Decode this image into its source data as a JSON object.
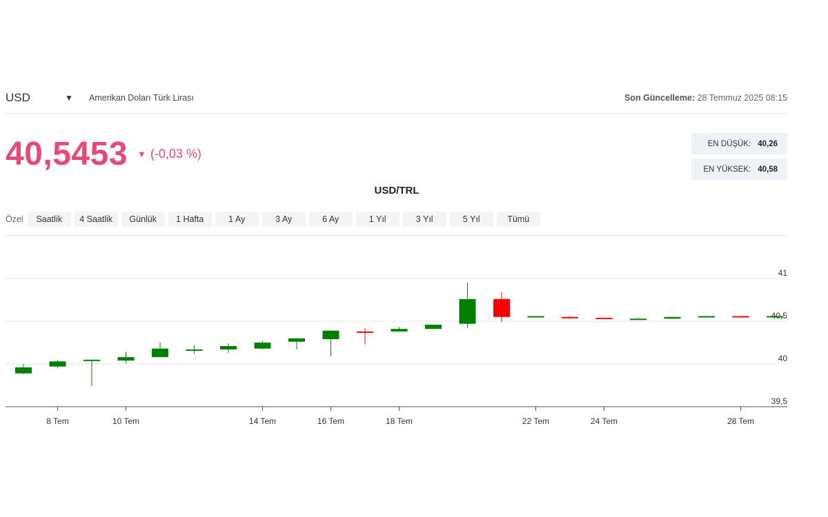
{
  "header": {
    "symbol": "USD",
    "caret_icon": "caret-down-icon",
    "description": "Amerikan Doları Türk Lirası",
    "updated_label": "Son Güncelleme:",
    "updated_value": "28 Temmuz 2025 08:15"
  },
  "quote": {
    "price": "40,5453",
    "change_icon": "caret-down-icon",
    "change": "(-0,03 %)"
  },
  "stats": {
    "low_label": "EN DÜŞÜK:",
    "low_value": "40,26",
    "high_label": "EN YÜKSEK:",
    "high_value": "40,58"
  },
  "range": {
    "label": "Özel",
    "buttons": [
      "Saatlik",
      "4 Saatlik",
      "Günlük",
      "1 Hafta",
      "1 Ay",
      "3 Ay",
      "6 Ay",
      "1 Yıl",
      "3 Yıl",
      "5 Yıl",
      "Tümü"
    ]
  },
  "chart_data": {
    "type": "candlestick",
    "title": "USD/TRL",
    "up_color": "#008000",
    "down_color": "#ff0000",
    "y_range": [
      39.5,
      41.0
    ],
    "y_ticks": [
      {
        "value": 41,
        "label": "41"
      },
      {
        "value": 40.5,
        "label": "40,5"
      },
      {
        "value": 40,
        "label": "40"
      },
      {
        "value": 39.5,
        "label": "39,5"
      }
    ],
    "x_ticks": [
      {
        "day": 8,
        "label": "8 Tem"
      },
      {
        "day": 10,
        "label": "10 Tem"
      },
      {
        "day": 14,
        "label": "14 Tem"
      },
      {
        "day": 16,
        "label": "16 Tem"
      },
      {
        "day": 18,
        "label": "18 Tem"
      },
      {
        "day": 22,
        "label": "22 Tem"
      },
      {
        "day": 24,
        "label": "24 Tem"
      },
      {
        "day": 28,
        "label": "28 Tem"
      }
    ],
    "candles": [
      {
        "day": 7,
        "open": 39.89,
        "high": 40.0,
        "low": 39.88,
        "close": 39.96
      },
      {
        "day": 8,
        "open": 39.97,
        "high": 40.04,
        "low": 39.95,
        "close": 40.03
      },
      {
        "day": 9,
        "open": 40.04,
        "high": 40.05,
        "low": 39.74,
        "close": 40.05
      },
      {
        "day": 10,
        "open": 40.04,
        "high": 40.14,
        "low": 40.01,
        "close": 40.08
      },
      {
        "day": 11,
        "open": 40.08,
        "high": 40.25,
        "low": 40.08,
        "close": 40.18
      },
      {
        "day": 12,
        "open": 40.17,
        "high": 40.22,
        "low": 40.12,
        "close": 40.17
      },
      {
        "day": 13,
        "open": 40.17,
        "high": 40.24,
        "low": 40.13,
        "close": 40.21
      },
      {
        "day": 14,
        "open": 40.18,
        "high": 40.27,
        "low": 40.17,
        "close": 40.25
      },
      {
        "day": 15,
        "open": 40.26,
        "high": 40.3,
        "low": 40.17,
        "close": 40.3
      },
      {
        "day": 16,
        "open": 40.29,
        "high": 40.38,
        "low": 40.09,
        "close": 40.39
      },
      {
        "day": 17,
        "open": 40.38,
        "high": 40.42,
        "low": 40.23,
        "close": 40.37
      },
      {
        "day": 18,
        "open": 40.38,
        "high": 40.43,
        "low": 40.38,
        "close": 40.41
      },
      {
        "day": 19,
        "open": 40.41,
        "high": 40.46,
        "low": 40.41,
        "close": 40.46
      },
      {
        "day": 20,
        "open": 40.47,
        "high": 40.95,
        "low": 40.42,
        "close": 40.76
      },
      {
        "day": 21,
        "open": 40.76,
        "high": 40.84,
        "low": 40.49,
        "close": 40.55
      },
      {
        "day": 22,
        "open": 40.55,
        "high": 40.56,
        "low": 40.55,
        "close": 40.56
      },
      {
        "day": 23,
        "open": 40.55,
        "high": 40.56,
        "low": 40.54,
        "close": 40.54
      },
      {
        "day": 24,
        "open": 40.54,
        "high": 40.54,
        "low": 40.53,
        "close": 40.53
      },
      {
        "day": 25,
        "open": 40.53,
        "high": 40.54,
        "low": 40.53,
        "close": 40.53
      },
      {
        "day": 26,
        "open": 40.53,
        "high": 40.55,
        "low": 40.53,
        "close": 40.55
      },
      {
        "day": 27,
        "open": 40.55,
        "high": 40.56,
        "low": 40.55,
        "close": 40.56
      },
      {
        "day": 28,
        "open": 40.56,
        "high": 40.56,
        "low": 40.55,
        "close": 40.55
      },
      {
        "day": 29,
        "open": 40.55,
        "high": 40.57,
        "low": 40.55,
        "close": 40.56
      }
    ]
  }
}
